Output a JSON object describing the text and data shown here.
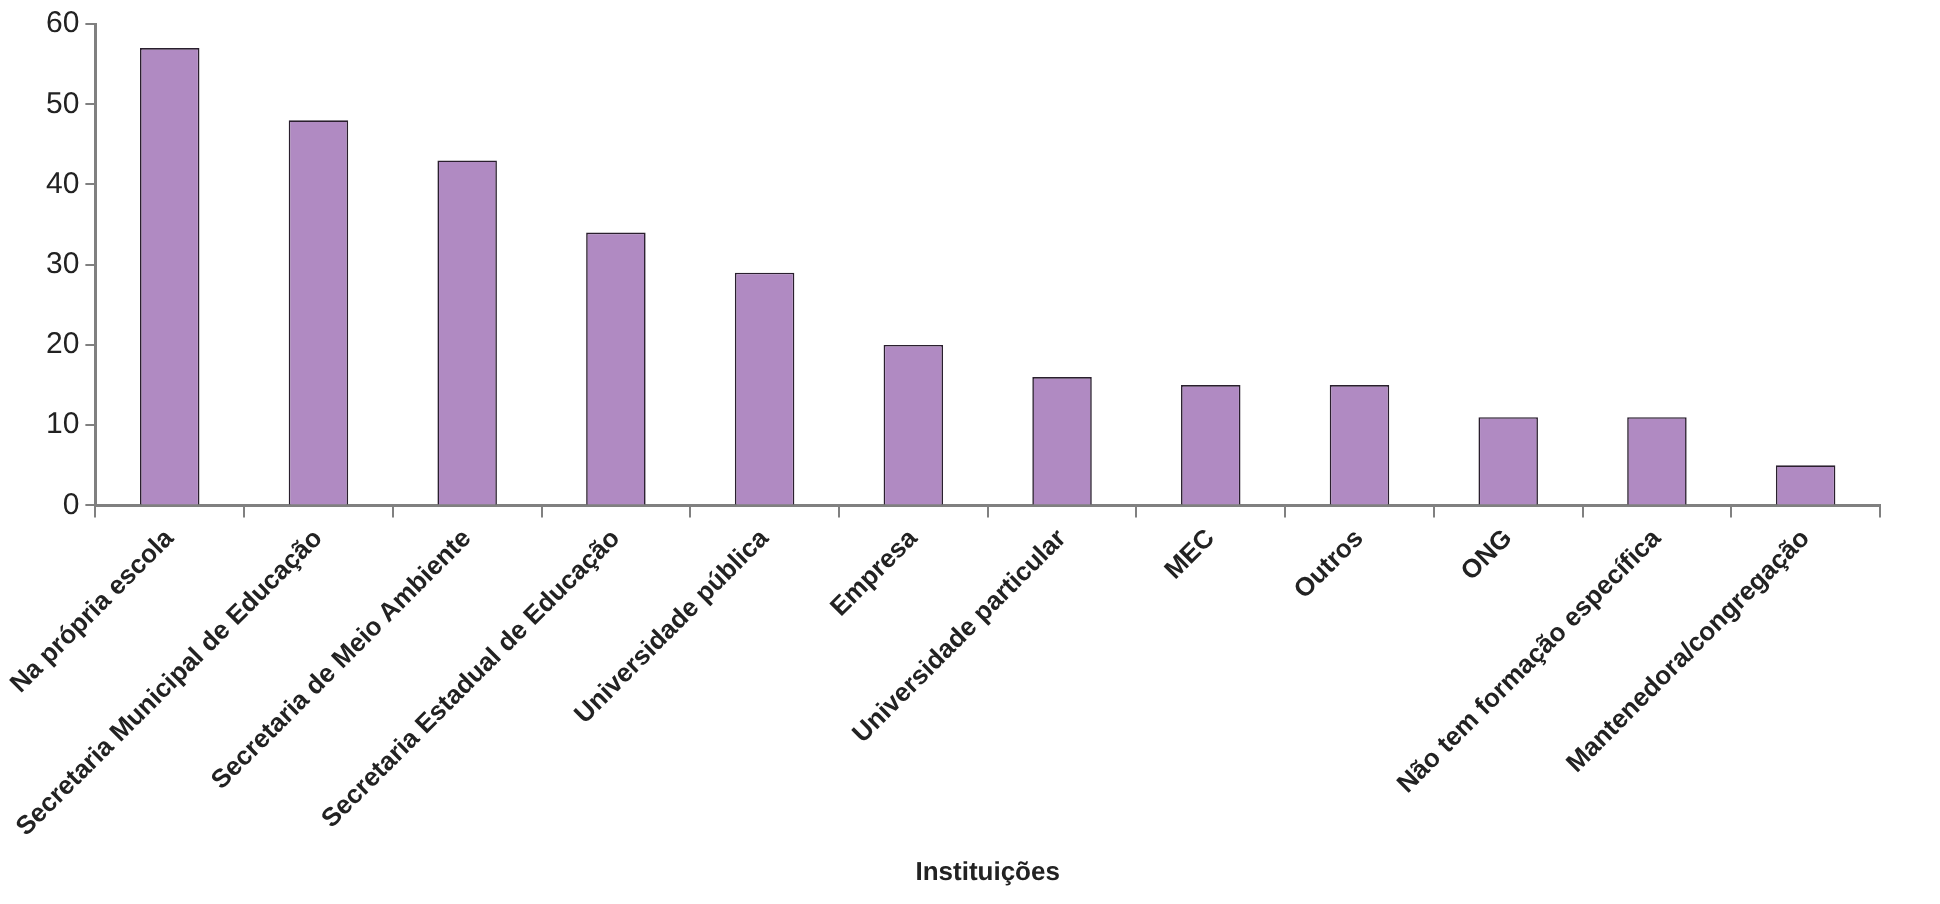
{
  "chart_data": {
    "type": "bar",
    "xlabel": "Instituições",
    "categories": [
      "Na própria escola",
      "Secretaria Municipal de Educação",
      "Secretaria de Meio Ambiente",
      "Secretaria Estadual de Educação",
      "Universidade pública",
      "Empresa",
      "Universidade particular",
      "MEC",
      "Outros",
      "ONG",
      "Não tem formação específica",
      "Mantenedora/congregação"
    ],
    "values": [
      57,
      48,
      43,
      34,
      29,
      20,
      16,
      15,
      15,
      11,
      11,
      5
    ],
    "color": "#b08ac2",
    "ylim": [
      0,
      60
    ],
    "yticks": [
      0,
      10,
      20,
      30,
      40,
      50,
      60
    ],
    "grid": false,
    "legend": false
  }
}
